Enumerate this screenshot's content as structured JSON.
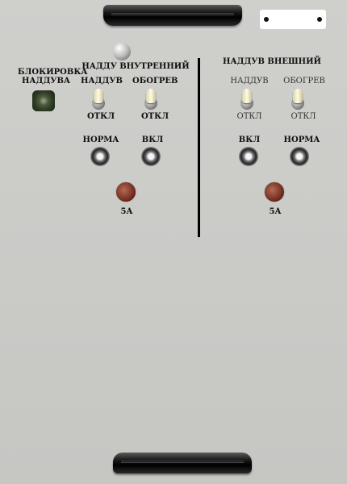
{
  "left": {
    "lock_label_line1": "БЛОКИРОВКА",
    "lock_label_line2": "НАДДУВА",
    "section_title": "НАДДУ ВНУТРЕННИЙ",
    "toggle_boost_label": "НАДДУВ",
    "toggle_heat_label": "ОБОГРЕВ",
    "toggle_boost_state": "ОТКЛ",
    "toggle_heat_state": "ОТКЛ",
    "lamp_normal_label": "НОРМА",
    "lamp_on_label": "ВКЛ",
    "fuse_label": "5А"
  },
  "right": {
    "section_title": "НАДДУВ ВНЕШНИЙ",
    "toggle_boost_label": "НАДДУВ",
    "toggle_heat_label": "ОБОГРЕВ",
    "toggle_boost_state": "ОТКЛ",
    "toggle_heat_state": "ОТКЛ",
    "lamp_on_label": "ВКЛ",
    "lamp_normal_label": "НОРМА",
    "fuse_label": "5А"
  }
}
